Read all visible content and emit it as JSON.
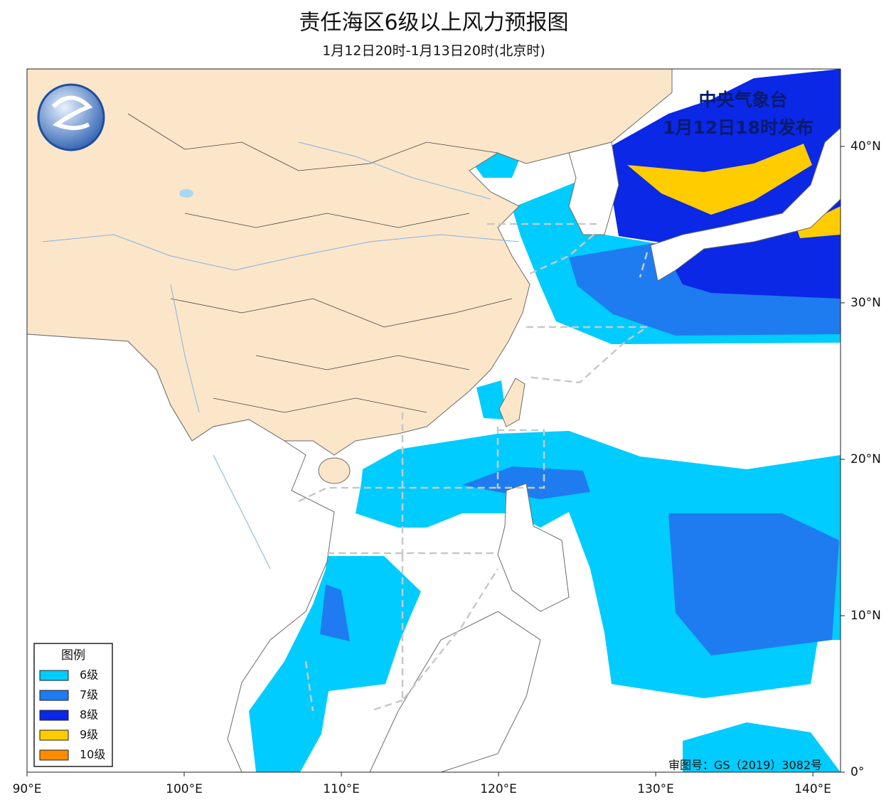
{
  "header": {
    "title": "责任海区6级以上风力预报图",
    "subtitle": "1月12日20时-1月13日20时(北京时)"
  },
  "publisher": {
    "name": "中央气象台",
    "issued": "1月12日18时发布"
  },
  "map": {
    "xlim": [
      90,
      141.76
    ],
    "ylim": [
      0,
      44.95
    ],
    "xticks": [
      {
        "value": 90,
        "label": "90°E"
      },
      {
        "value": 100,
        "label": "100°E"
      },
      {
        "value": 110,
        "label": "110°E"
      },
      {
        "value": 120,
        "label": "120°E"
      },
      {
        "value": 130,
        "label": "130°E"
      },
      {
        "value": 140,
        "label": "140°E"
      }
    ],
    "yticks": [
      {
        "value": 0,
        "label": "0°"
      },
      {
        "value": 10,
        "label": "10°N"
      },
      {
        "value": 20,
        "label": "20°N"
      },
      {
        "value": 30,
        "label": "30°N"
      },
      {
        "value": 40,
        "label": "40°N"
      }
    ]
  },
  "legend": {
    "title": "图例",
    "items": [
      {
        "label": "6级",
        "color": "#00ccff"
      },
      {
        "label": "7级",
        "color": "#1e7cf0"
      },
      {
        "label": "8级",
        "color": "#0a28e6"
      },
      {
        "label": "9级",
        "color": "#ffcc00"
      },
      {
        "label": "10级",
        "color": "#ff8c00"
      }
    ]
  },
  "approval": "审图号：GS（2019）3082号"
}
